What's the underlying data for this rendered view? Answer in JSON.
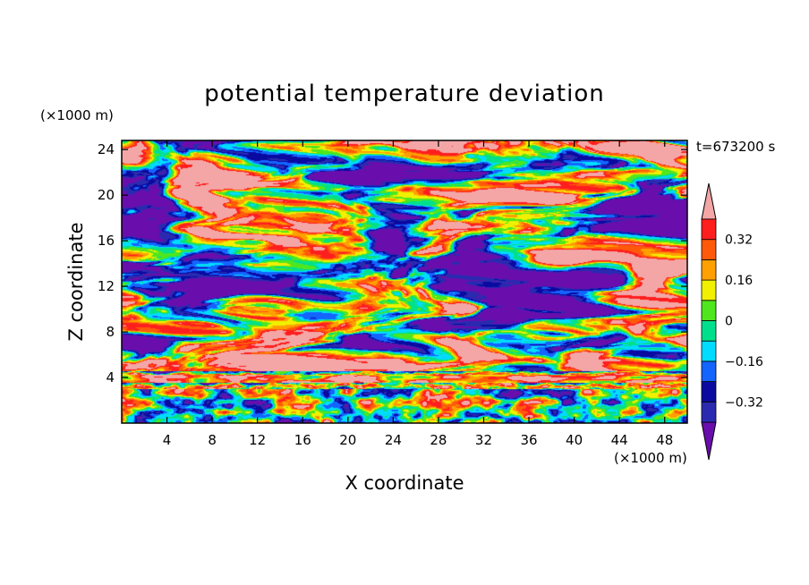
{
  "chart_data": {
    "type": "heatmap",
    "title": "potential temperature deviation",
    "xlabel": "X coordinate",
    "ylabel": "Z coordinate",
    "x_unit_label": "(×1000 m)",
    "y_unit_label": "(×1000 m)",
    "time_label": "t=673200 s",
    "xlim": [
      0,
      50
    ],
    "ylim": [
      0,
      24.8
    ],
    "x_ticks": [
      4,
      8,
      12,
      16,
      20,
      24,
      28,
      32,
      36,
      40,
      44,
      48
    ],
    "y_ticks": [
      4,
      8,
      12,
      16,
      20,
      24
    ],
    "colorbar": {
      "levels": [
        -0.4,
        -0.32,
        -0.24,
        -0.16,
        -0.08,
        0,
        0.08,
        0.16,
        0.24,
        0.32,
        0.4
      ],
      "tick_values": [
        0.32,
        0.16,
        0,
        -0.16,
        -0.32
      ],
      "tick_labels": [
        "0.32",
        "0.16",
        "0",
        "−0.16",
        "−0.32"
      ],
      "colors": [
        "#6a0dad",
        "#2a2ab0",
        "#0a0aa0",
        "#1464ff",
        "#00dcff",
        "#00e08c",
        "#50e61e",
        "#f0f000",
        "#ffa000",
        "#ff5a0a",
        "#ff1e1e",
        "#f4a6a6"
      ],
      "extend": "both"
    },
    "field_description": "Turbulent potential temperature deviation field: large-scale patches above z=4 (×1000 m), a thin stratified layer near z=3.5–4.5, and small-amplitude turbulent eddies below z=3."
  }
}
